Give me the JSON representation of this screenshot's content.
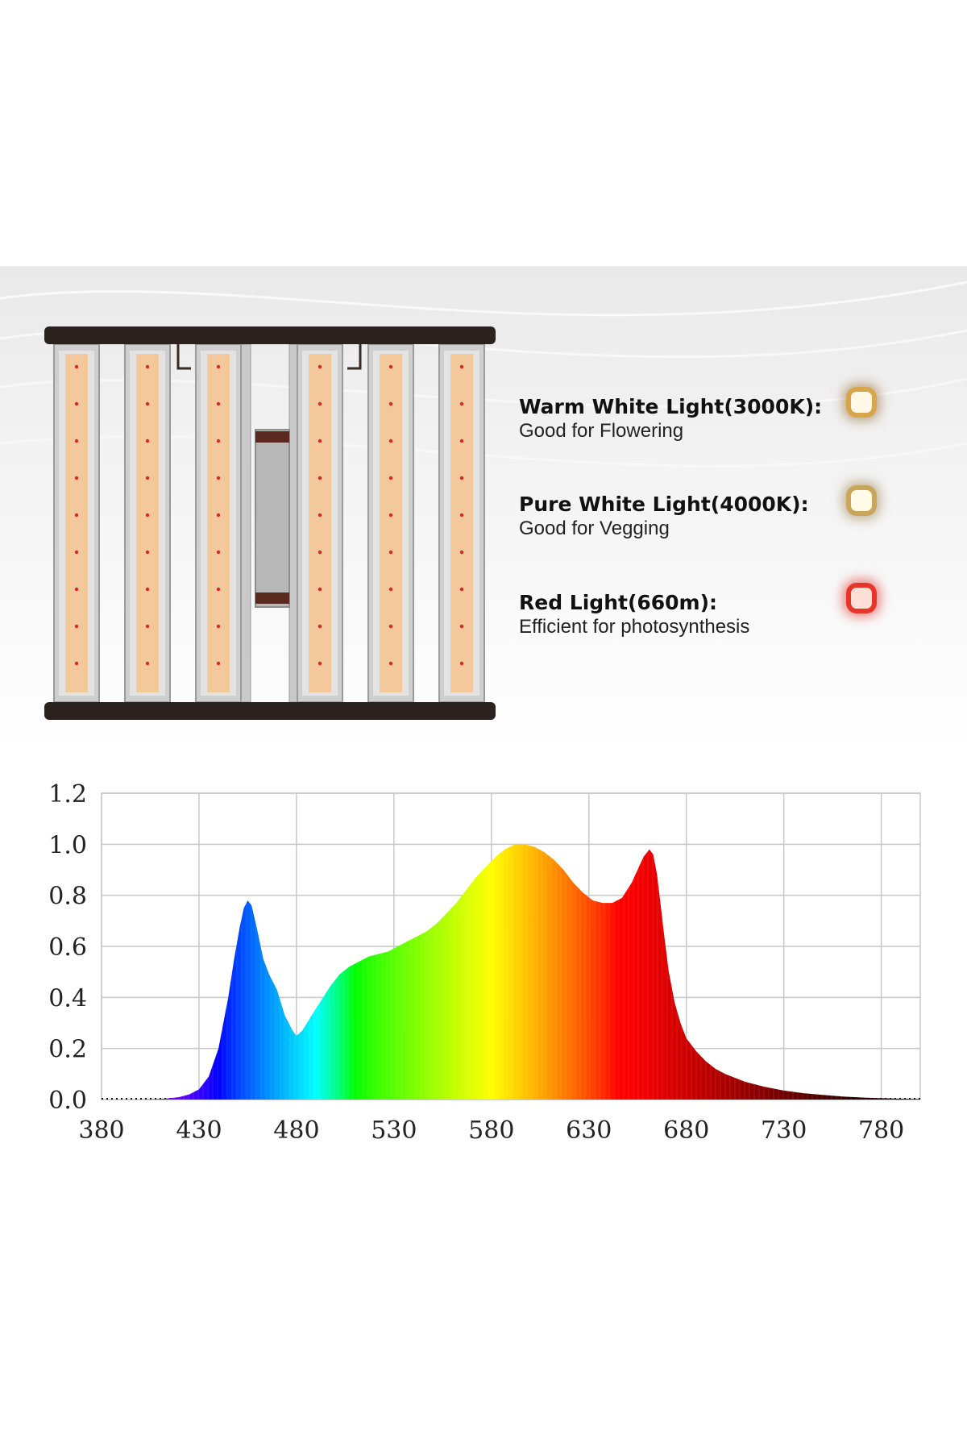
{
  "legend": [
    {
      "title": "Warm White Light(3000K):",
      "desc": "Good for Flowering",
      "icon": "warm-white-led-icon",
      "color": "#e0a84a"
    },
    {
      "title": "Pure White Light(4000K):",
      "desc": "Good for Vegging",
      "icon": "pure-white-led-icon",
      "color": "#cfae62"
    },
    {
      "title": "Red Light(660m):",
      "desc": "Efficient for photosynthesis",
      "icon": "red-led-icon",
      "color": "#e8352a"
    }
  ],
  "colors": {
    "fixture_frame": "#2b2220",
    "led_warm": "#f3c89a",
    "led_red": "#e4202a",
    "grid": "#c8c8c8"
  },
  "chart_data": {
    "type": "area",
    "title": "",
    "xlabel": "",
    "ylabel": "",
    "xlim": [
      380,
      800
    ],
    "ylim": [
      0,
      1.2
    ],
    "x_ticks": [
      380,
      430,
      480,
      530,
      580,
      630,
      680,
      730,
      780
    ],
    "x_tick_labels": [
      "380",
      "430",
      "480",
      "530",
      "580",
      "630",
      "680",
      "730",
      "780"
    ],
    "y_ticks": [
      0,
      0.2,
      0.4,
      0.6,
      0.8,
      1.0,
      1.2
    ],
    "y_tick_labels": [
      "0.0",
      "0.2",
      "0.4",
      "0.6",
      "0.8",
      "1.0",
      "1.2"
    ],
    "grid": true,
    "fill": "wavelength-colored spectrum",
    "series": [
      {
        "x": [
          380,
          400,
          410,
          415,
          420,
          425,
          430,
          435,
          440,
          445,
          448,
          451,
          453,
          455,
          457,
          460,
          463,
          466,
          470,
          474,
          478,
          480,
          483,
          487,
          492,
          497,
          502,
          507,
          512,
          517,
          522,
          527,
          532,
          537,
          542,
          547,
          552,
          557,
          562,
          567,
          572,
          577,
          582,
          587,
          592,
          597,
          602,
          607,
          612,
          617,
          622,
          627,
          632,
          637,
          642,
          647,
          652,
          655,
          658,
          661,
          663,
          665,
          667,
          669,
          671,
          674,
          677,
          680,
          685,
          690,
          695,
          700,
          710,
          720,
          730,
          740,
          750,
          760,
          770,
          780,
          790,
          800
        ],
        "y": [
          0.0,
          0.0,
          0.002,
          0.005,
          0.01,
          0.02,
          0.04,
          0.09,
          0.2,
          0.4,
          0.55,
          0.68,
          0.75,
          0.78,
          0.76,
          0.66,
          0.55,
          0.49,
          0.43,
          0.33,
          0.27,
          0.25,
          0.27,
          0.32,
          0.38,
          0.44,
          0.49,
          0.52,
          0.54,
          0.56,
          0.57,
          0.58,
          0.6,
          0.62,
          0.64,
          0.66,
          0.69,
          0.73,
          0.77,
          0.82,
          0.87,
          0.91,
          0.95,
          0.98,
          1.0,
          1.0,
          0.99,
          0.97,
          0.94,
          0.9,
          0.85,
          0.81,
          0.78,
          0.77,
          0.77,
          0.79,
          0.85,
          0.9,
          0.95,
          0.98,
          0.96,
          0.88,
          0.75,
          0.62,
          0.5,
          0.38,
          0.3,
          0.24,
          0.19,
          0.15,
          0.12,
          0.1,
          0.07,
          0.05,
          0.035,
          0.025,
          0.018,
          0.012,
          0.008,
          0.005,
          0.003,
          0.002
        ]
      }
    ]
  }
}
